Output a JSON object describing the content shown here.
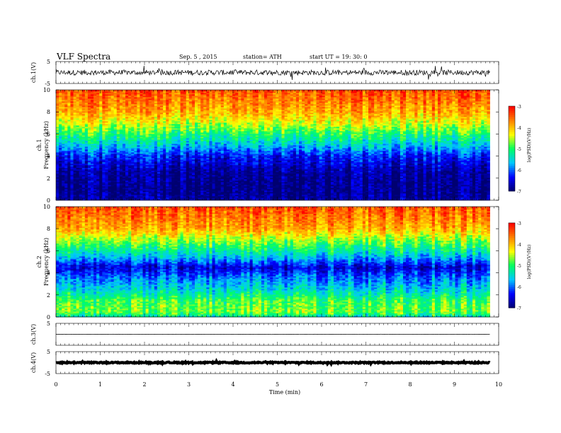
{
  "header": {
    "title": "VLF  Spectra",
    "date": "Sep. 5  , 2015",
    "station": "station= ATH",
    "start": "start  UT =    19: 30: 0"
  },
  "chart_data": {
    "type": "spectrogram",
    "x_axis": {
      "label": "Time  (min)",
      "range": [
        0,
        10
      ],
      "ticks": [
        "0",
        "1",
        "2",
        "3",
        "4",
        "5",
        "6",
        "7",
        "8",
        "9",
        "10"
      ],
      "data_end": 9.8
    },
    "panels": [
      {
        "type": "line",
        "ylabel": "ch.1(V)",
        "ylim": [
          -5,
          5
        ],
        "yticks": [
          "5",
          "-5"
        ],
        "baseline": 0.0,
        "noise_amplitude": 1.2
      },
      {
        "type": "heatmap",
        "ylabel_channel": "ch.1",
        "ylabel": "Frequency  (kHz)",
        "ylim": [
          0,
          10
        ],
        "yticks": [
          "0",
          "2",
          "4",
          "6",
          "8",
          "10"
        ],
        "colorbar": {
          "label": "log(PSD)(V²/Hz)",
          "ticks": [
            "-3",
            "-4",
            "-5",
            "-6",
            "-7"
          ],
          "range": [
            -7,
            -3
          ]
        },
        "profile": [
          {
            "f": 0.0,
            "v": -6.8
          },
          {
            "f": 1.0,
            "v": -6.9
          },
          {
            "f": 2.5,
            "v": -6.8
          },
          {
            "f": 4.0,
            "v": -6.3
          },
          {
            "f": 5.0,
            "v": -5.6
          },
          {
            "f": 6.0,
            "v": -5.0
          },
          {
            "f": 7.0,
            "v": -4.4
          },
          {
            "f": 8.0,
            "v": -3.9
          },
          {
            "f": 10.0,
            "v": -3.4
          }
        ]
      },
      {
        "type": "heatmap",
        "ylabel_channel": "ch.2",
        "ylabel": "Frequency  (kHz)",
        "ylim": [
          0,
          10
        ],
        "yticks": [
          "0",
          "2",
          "4",
          "6",
          "8",
          "10"
        ],
        "colorbar": {
          "label": "log(PSD)(V²/Hz)",
          "ticks": [
            "-3",
            "-4",
            "-5",
            "-6",
            "-7"
          ],
          "range": [
            -7,
            -3
          ]
        },
        "profile": [
          {
            "f": 0.0,
            "v": -5.4
          },
          {
            "f": 0.5,
            "v": -4.7
          },
          {
            "f": 1.5,
            "v": -4.9
          },
          {
            "f": 2.5,
            "v": -5.5
          },
          {
            "f": 3.5,
            "v": -5.9
          },
          {
            "f": 4.5,
            "v": -6.5
          },
          {
            "f": 5.5,
            "v": -5.6
          },
          {
            "f": 7.0,
            "v": -4.6
          },
          {
            "f": 8.0,
            "v": -3.9
          },
          {
            "f": 10.0,
            "v": -3.4
          }
        ]
      },
      {
        "type": "line",
        "ylabel": "ch.3(V)",
        "ylim": [
          -5,
          5
        ],
        "yticks": [
          "5"
        ],
        "baseline": 0.0,
        "noise_amplitude": 0.05
      },
      {
        "type": "line",
        "ylabel": "ch.4(V)",
        "ylim": [
          -5,
          5
        ],
        "yticks": [
          "5",
          "-5"
        ],
        "baseline": 0.0,
        "noise_amplitude": 0.25
      }
    ],
    "colormap": [
      "#000070",
      "#0000ff",
      "#00c8ff",
      "#00ff60",
      "#ffff00",
      "#ff8000",
      "#ff0000"
    ]
  }
}
